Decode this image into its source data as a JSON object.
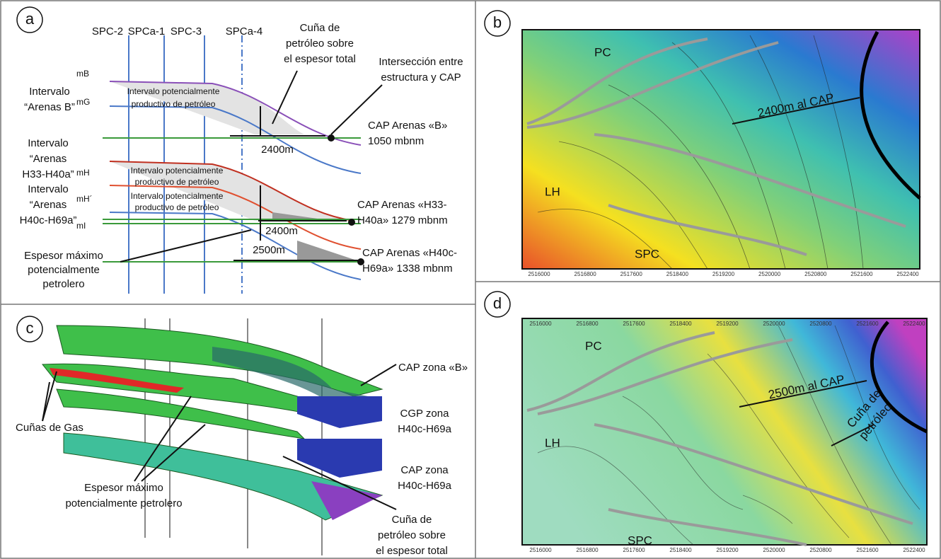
{
  "panel_a": {
    "label": "a",
    "wells": [
      "SPC-2",
      "SPCa-1",
      "SPC-3",
      "SPCa-4"
    ],
    "markers": [
      "mB",
      "mG",
      "mH",
      "mH´",
      "mI"
    ],
    "wedge_note": [
      "Cuña de",
      "petróleo sobre",
      "el espesor total"
    ],
    "intersection_note": [
      "Intersección entre",
      "estructura y CAP"
    ],
    "interval_b": [
      "Intervalo",
      "“Arenas B”"
    ],
    "interval_h33": [
      "Intervalo",
      "“Arenas",
      "H33-H40a”"
    ],
    "interval_h40": [
      "Intervalo",
      "“Arenas",
      "H40c-H69a”"
    ],
    "productive_interval": [
      "Intervalo potencialmente",
      "productivo de petróleo"
    ],
    "cap_b": [
      "CAP Arenas «B»",
      "1050 mbnm"
    ],
    "cap_h33": [
      "CAP Arenas «H33-",
      "H40a» 1279 mbnm"
    ],
    "cap_h40": [
      "CAP Arenas «H40c-",
      "H69a» 1338 mbnm"
    ],
    "max_thickness": [
      "Espesor máximo",
      "potencialmente",
      "petrolero"
    ],
    "distances": [
      "2400m",
      "2400m",
      "2500m"
    ]
  },
  "panel_b": {
    "label": "b",
    "places": [
      "PC",
      "LH",
      "SPC"
    ],
    "distance_label": "2400m al CAP",
    "x_axis": [
      "2516000",
      "2516800",
      "2517600",
      "2518400",
      "2519200",
      "2520000",
      "2520800",
      "2521600",
      "2522400"
    ]
  },
  "panel_c": {
    "label": "c",
    "cap_b": "CAP zona «B»",
    "cgp": [
      "CGP zona",
      "H40c-H69a"
    ],
    "gas_wedges": "Cuñas de Gas",
    "cap_h40": [
      "CAP zona",
      "H40c-H69a"
    ],
    "max_thickness": [
      "Espesor máximo",
      "potencialmente petrolero"
    ],
    "wedge_note": [
      "Cuña de",
      "petróleo sobre",
      "el espesor total"
    ]
  },
  "panel_d": {
    "label": "d",
    "places": [
      "PC",
      "LH",
      "SPC"
    ],
    "distance_label": "2500m al CAP",
    "wedge_label": [
      "Cuña de",
      "petróleo"
    ],
    "x_axis": [
      "2516000",
      "2516800",
      "2517600",
      "2518400",
      "2519200",
      "2520000",
      "2520800",
      "2521600",
      "2522400"
    ]
  }
}
